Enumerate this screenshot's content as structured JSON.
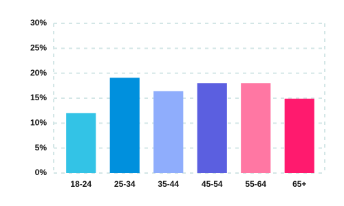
{
  "chart_data": {
    "type": "bar",
    "categories": [
      "18-24",
      "25-34",
      "35-44",
      "45-54",
      "55-64",
      "65+"
    ],
    "values": [
      12,
      19.1,
      16.4,
      18,
      18,
      14.9
    ],
    "colors": [
      "#33c3e6",
      "#0090dd",
      "#8fadfc",
      "#5b5fe0",
      "#ff77a3",
      "#ff1a6e"
    ],
    "ylim": [
      0,
      30
    ],
    "yticks": [
      {
        "value": 0,
        "label": "0%"
      },
      {
        "value": 5,
        "label": "5%"
      },
      {
        "value": 10,
        "label": "10%"
      },
      {
        "value": 15,
        "label": "15%"
      },
      {
        "value": 20,
        "label": "20%"
      },
      {
        "value": 25,
        "label": "25%"
      },
      {
        "value": 30,
        "label": "30%"
      }
    ],
    "grid": true
  }
}
